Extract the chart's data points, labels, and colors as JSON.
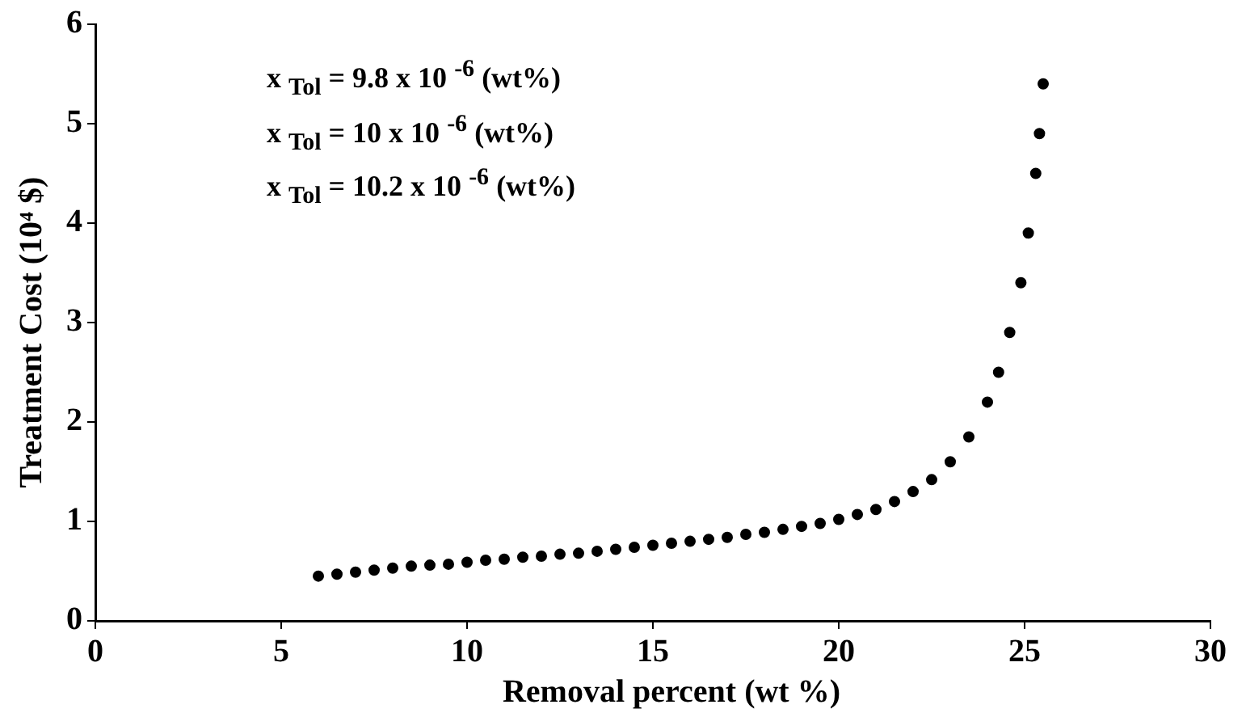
{
  "chart_data": {
    "type": "scatter",
    "xlabel": "Removal percent (wt %)",
    "ylabel": "Treatment Cost (10⁴ $)",
    "annotations": [
      "x $_{Tol}$ = 9.8 x 10 $^{-6}$ (wt%)",
      "x $_{Tol}$ = 10 x 10 $^{-6}$ (wt%)",
      "x $_{Tol}$ = 10.2 x 10 $^{-6}$  (wt%)"
    ],
    "series": [
      {
        "color": "#000000",
        "x": [
          6,
          6.5,
          7,
          7.5,
          8,
          8.5,
          9,
          9.5,
          10,
          10.5,
          11,
          11.5,
          12,
          12.5,
          13,
          13.5,
          14,
          14.5,
          15,
          15.5,
          16,
          16.5,
          17,
          17.5,
          18,
          18.5,
          19,
          19.5,
          20,
          20.5,
          21,
          21.5,
          22,
          22.5,
          23,
          23.5,
          24,
          24.3,
          24.6,
          24.9,
          25.1,
          25.3,
          25.4,
          25.5
        ],
        "values": [
          0.45,
          0.47,
          0.49,
          0.51,
          0.53,
          0.55,
          0.56,
          0.57,
          0.59,
          0.61,
          0.62,
          0.64,
          0.65,
          0.67,
          0.68,
          0.7,
          0.72,
          0.74,
          0.76,
          0.78,
          0.8,
          0.82,
          0.84,
          0.87,
          0.89,
          0.92,
          0.95,
          0.98,
          1.02,
          1.07,
          1.12,
          1.2,
          1.3,
          1.42,
          1.6,
          1.85,
          2.2,
          2.5,
          2.9,
          3.4,
          3.9,
          4.5,
          4.9,
          5.4
        ]
      }
    ],
    "xlim": [
      0,
      30
    ],
    "xticks": [
      0,
      5,
      10,
      15,
      20,
      25,
      30
    ],
    "ylim": [
      0,
      6
    ],
    "yticks": [
      0,
      1,
      2,
      3,
      4,
      5,
      6
    ],
    "grid": false,
    "legend": false,
    "marker": "circle"
  }
}
